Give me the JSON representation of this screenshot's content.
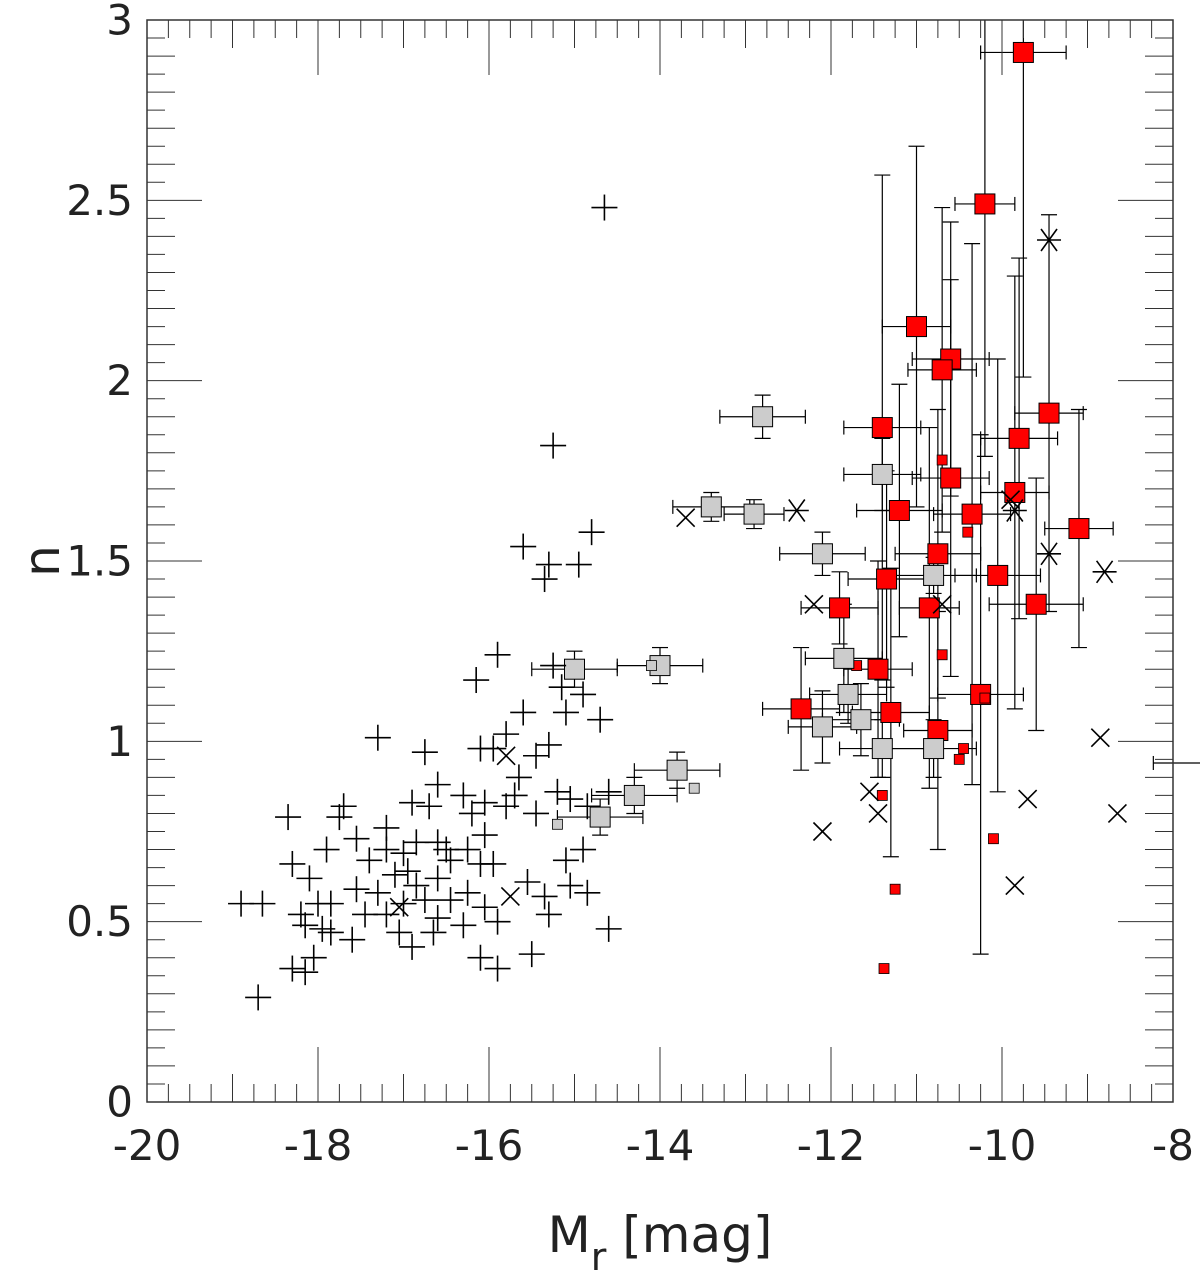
{
  "chart_data": {
    "type": "scatter",
    "title": "",
    "xlabel": "M",
    "xlabel_sub": "r",
    "xlabel_suffix": " [mag]",
    "ylabel": "n",
    "xlim": [
      -20,
      -8
    ],
    "ylim": [
      0,
      3
    ],
    "x_ticks": [
      -20,
      -18,
      -16,
      -14,
      -12,
      -10,
      -8
    ],
    "y_ticks": [
      0,
      0.5,
      1,
      1.5,
      2,
      2.5,
      3
    ],
    "x_tick_labels": [
      "-20",
      "-18",
      "-16",
      "-14",
      "-12",
      "-10",
      "-8"
    ],
    "y_tick_labels": [
      "0",
      "0.5",
      "1",
      "1.5",
      "2",
      "2.5",
      "3"
    ],
    "grid": false,
    "colors": {
      "red": "#ff0000",
      "grey": "#cccccc",
      "black": "#000000"
    },
    "series": [
      {
        "name": "red-squares-large",
        "marker": "square",
        "color": "#ff0000",
        "points": [
          [
            -9.75,
            2.91,
            0.5,
            0.9
          ],
          [
            -10.2,
            2.49,
            0.35,
            0.7
          ],
          [
            -9.45,
            1.91,
            0.4,
            0.55
          ],
          [
            -11.0,
            2.15,
            0.4,
            0.5
          ],
          [
            -10.6,
            2.06,
            0.45,
            0.38
          ],
          [
            -10.7,
            2.03,
            0.4,
            0.45
          ],
          [
            -11.4,
            1.87,
            0.45,
            0.7
          ],
          [
            -9.8,
            1.84,
            0.45,
            0.5
          ],
          [
            -10.6,
            1.73,
            0.45,
            0.55
          ],
          [
            -9.85,
            1.69,
            0.4,
            0.6
          ],
          [
            -11.2,
            1.64,
            0.5,
            0.35
          ],
          [
            -10.35,
            1.63,
            0.45,
            0.75
          ],
          [
            -9.1,
            1.59,
            0.4,
            0.33
          ],
          [
            -10.75,
            1.52,
            0.5,
            0.4
          ],
          [
            -11.35,
            1.45,
            0.45,
            0.3
          ],
          [
            -10.05,
            1.46,
            0.5,
            0.6
          ],
          [
            -9.6,
            1.38,
            0.55,
            0.35
          ],
          [
            -11.9,
            1.37,
            0.45,
            0.1
          ],
          [
            -10.85,
            1.37,
            0.35,
            0.5
          ],
          [
            -11.45,
            1.2,
            0.4,
            0.3
          ],
          [
            -10.25,
            1.13,
            0.5,
            0.72
          ],
          [
            -12.35,
            1.09,
            0.45,
            0.17
          ],
          [
            -11.3,
            1.08,
            0.45,
            0.4
          ],
          [
            -10.75,
            1.03,
            0.4,
            0.33
          ]
        ]
      },
      {
        "name": "red-squares-small",
        "marker": "square-small",
        "color": "#ff0000",
        "points": [
          [
            -10.7,
            1.78
          ],
          [
            -10.4,
            1.58
          ],
          [
            -10.7,
            1.24
          ],
          [
            -11.7,
            1.21
          ],
          [
            -10.45,
            0.98
          ],
          [
            -10.5,
            0.95
          ],
          [
            -11.4,
            0.85
          ],
          [
            -10.1,
            0.73
          ],
          [
            -11.25,
            0.59
          ],
          [
            -11.38,
            0.37
          ],
          [
            -10.2,
            1.12
          ]
        ]
      },
      {
        "name": "grey-squares-large",
        "marker": "square",
        "color": "#cccccc",
        "points": [
          [
            -12.8,
            1.9,
            0.5,
            0.06
          ],
          [
            -13.4,
            1.65,
            0.45,
            0.04
          ],
          [
            -12.9,
            1.63,
            0.35,
            0.04
          ],
          [
            -11.4,
            1.74,
            0.45,
            0.1
          ],
          [
            -12.1,
            1.52,
            0.5,
            0.06
          ],
          [
            -10.8,
            1.46,
            0.5,
            0.05
          ],
          [
            -15.0,
            1.2,
            0.5,
            0.05
          ],
          [
            -14.0,
            1.21,
            0.5,
            0.05
          ],
          [
            -11.85,
            1.23,
            0.45,
            0.15
          ],
          [
            -11.8,
            1.13,
            0.45,
            0.08
          ],
          [
            -11.65,
            1.06,
            0.45,
            0.1
          ],
          [
            -12.1,
            1.04,
            0.4,
            0.1
          ],
          [
            -11.4,
            0.98,
            0.5,
            0.08
          ],
          [
            -10.8,
            0.98,
            0.5,
            0.08
          ],
          [
            -13.8,
            0.92,
            0.5,
            0.05
          ],
          [
            -14.3,
            0.85,
            0.5,
            0.05
          ],
          [
            -14.7,
            0.79,
            0.5,
            0.05
          ]
        ]
      },
      {
        "name": "grey-squares-small",
        "marker": "square-small",
        "color": "#cccccc",
        "points": [
          [
            -13.6,
            0.87
          ],
          [
            -15.2,
            0.77
          ],
          [
            -14.1,
            1.21
          ]
        ]
      },
      {
        "name": "plus-markers",
        "marker": "plus",
        "color": "#000000",
        "points": [
          [
            -14.65,
            2.48
          ],
          [
            -15.25,
            1.82
          ],
          [
            -14.8,
            1.58
          ],
          [
            -15.6,
            1.54
          ],
          [
            -15.3,
            1.49
          ],
          [
            -14.95,
            1.49
          ],
          [
            -15.35,
            1.45
          ],
          [
            -15.9,
            1.24
          ],
          [
            -16.15,
            1.17
          ],
          [
            -15.25,
            1.21
          ],
          [
            -15.15,
            1.15
          ],
          [
            -14.9,
            1.13
          ],
          [
            -15.6,
            1.08
          ],
          [
            -15.8,
            1.02
          ],
          [
            -15.1,
            1.08
          ],
          [
            -14.7,
            1.06
          ],
          [
            -15.95,
            0.98
          ],
          [
            -15.3,
            0.99
          ],
          [
            -15.45,
            0.96
          ],
          [
            -15.65,
            0.9
          ],
          [
            -15.2,
            0.86
          ],
          [
            -15.45,
            0.8
          ],
          [
            -15.05,
            0.84
          ],
          [
            -14.85,
            0.82
          ],
          [
            -14.6,
            0.86
          ],
          [
            -15.8,
            0.82
          ],
          [
            -16.3,
            0.85
          ],
          [
            -16.6,
            0.88
          ],
          [
            -16.9,
            0.83
          ],
          [
            -17.3,
            1.01
          ],
          [
            -16.75,
            0.97
          ],
          [
            -16.1,
            0.98
          ],
          [
            -16.05,
            0.74
          ],
          [
            -16.25,
            0.7
          ],
          [
            -16.5,
            0.7
          ],
          [
            -16.6,
            0.62
          ],
          [
            -16.85,
            0.72
          ],
          [
            -16.95,
            0.64
          ],
          [
            -17.2,
            0.76
          ],
          [
            -17.4,
            0.67
          ],
          [
            -17.55,
            0.73
          ],
          [
            -17.7,
            0.82
          ],
          [
            -17.75,
            0.79
          ],
          [
            -17.9,
            0.7
          ],
          [
            -18.35,
            0.79
          ],
          [
            -18.3,
            0.66
          ],
          [
            -18.1,
            0.62
          ],
          [
            -18.0,
            0.55
          ],
          [
            -18.2,
            0.52
          ],
          [
            -17.55,
            0.59
          ],
          [
            -17.45,
            0.52
          ],
          [
            -17.2,
            0.52
          ],
          [
            -17.0,
            0.55
          ],
          [
            -16.85,
            0.6
          ],
          [
            -16.75,
            0.56
          ],
          [
            -16.45,
            0.56
          ],
          [
            -16.25,
            0.58
          ],
          [
            -16.1,
            0.66
          ],
          [
            -16.05,
            0.54
          ],
          [
            -15.9,
            0.5
          ],
          [
            -15.55,
            0.61
          ],
          [
            -15.35,
            0.57
          ],
          [
            -15.3,
            0.52
          ],
          [
            -15.1,
            0.67
          ],
          [
            -15.05,
            0.6
          ],
          [
            -16.65,
            0.47
          ],
          [
            -16.9,
            0.43
          ],
          [
            -17.05,
            0.47
          ],
          [
            -17.6,
            0.45
          ],
          [
            -17.85,
            0.47
          ],
          [
            -18.05,
            0.4
          ],
          [
            -18.3,
            0.37
          ],
          [
            -18.15,
            0.36
          ],
          [
            -18.9,
            0.55
          ],
          [
            -18.65,
            0.55
          ],
          [
            -18.7,
            0.29
          ],
          [
            -16.1,
            0.4
          ],
          [
            -15.9,
            0.37
          ],
          [
            -15.5,
            0.41
          ],
          [
            -14.6,
            0.48
          ],
          [
            -14.85,
            0.58
          ],
          [
            -16.45,
            0.67
          ],
          [
            -16.6,
            0.72
          ],
          [
            -17.2,
            0.7
          ],
          [
            -17.0,
            0.69
          ],
          [
            -16.2,
            0.8
          ],
          [
            -16.05,
            0.83
          ],
          [
            -15.7,
            0.85
          ],
          [
            -14.9,
            0.7
          ],
          [
            -17.85,
            0.55
          ],
          [
            -18.15,
            0.49
          ],
          [
            -17.95,
            0.48
          ],
          [
            -17.3,
            0.58
          ],
          [
            -16.3,
            0.49
          ],
          [
            -15.95,
            0.66
          ],
          [
            -16.6,
            0.51
          ],
          [
            -17.1,
            0.63
          ],
          [
            -16.7,
            0.82
          ]
        ]
      },
      {
        "name": "x-markers",
        "marker": "x",
        "color": "#000000",
        "points": [
          [
            -13.7,
            1.62
          ],
          [
            -12.2,
            1.38
          ],
          [
            -10.7,
            1.38
          ],
          [
            -9.9,
            1.67
          ],
          [
            -15.8,
            0.96
          ],
          [
            -15.75,
            0.57
          ],
          [
            -17.05,
            0.54
          ],
          [
            -11.55,
            0.86
          ],
          [
            -11.45,
            0.8
          ],
          [
            -12.1,
            0.75
          ],
          [
            -9.7,
            0.84
          ],
          [
            -9.85,
            0.6
          ],
          [
            -8.85,
            1.01
          ],
          [
            -8.65,
            0.8
          ]
        ]
      },
      {
        "name": "asterisk-markers",
        "marker": "asterisk",
        "color": "#000000",
        "points": [
          [
            -12.4,
            1.64
          ],
          [
            -9.45,
            2.39
          ],
          [
            -9.85,
            1.64
          ],
          [
            -9.45,
            1.52
          ],
          [
            -8.8,
            1.47
          ]
        ]
      },
      {
        "name": "edge-errorbars",
        "marker": "errorbar-only",
        "color": "#000000",
        "points": [
          [
            -7.85,
            0.94,
            0.38,
            0
          ]
        ]
      }
    ]
  }
}
